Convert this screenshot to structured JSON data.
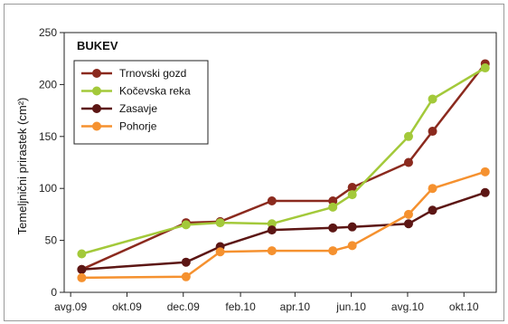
{
  "chart_data": {
    "type": "line",
    "title": "BUKEV",
    "xlabel": "",
    "ylabel": "Temeljnični prirastek (cm²)",
    "ylim": [
      0,
      250
    ],
    "yticks": [
      0,
      50,
      100,
      150,
      200,
      250
    ],
    "xlim": [
      "2009-07-25",
      "2010-11-05"
    ],
    "xticks": [
      {
        "label": "avg.09",
        "date": "2009-08-01"
      },
      {
        "label": "okt.09",
        "date": "2009-10-01"
      },
      {
        "label": "dec.09",
        "date": "2009-12-01"
      },
      {
        "label": "feb.10",
        "date": "2010-02-01"
      },
      {
        "label": "apr.10",
        "date": "2010-04-01"
      },
      {
        "label": "jun.10",
        "date": "2010-06-01"
      },
      {
        "label": "avg.10",
        "date": "2010-08-01"
      },
      {
        "label": "okt.10",
        "date": "2010-10-01"
      }
    ],
    "grid": false,
    "legend_position": "top-left",
    "series": [
      {
        "name": "Trnovski gozd",
        "color": "#8b2a1e",
        "points": [
          {
            "x": "2009-08-13",
            "y": 22
          },
          {
            "x": "2009-12-04",
            "y": 67
          },
          {
            "x": "2010-01-10",
            "y": 68
          },
          {
            "x": "2010-03-07",
            "y": 88
          },
          {
            "x": "2010-05-12",
            "y": 88
          },
          {
            "x": "2010-06-02",
            "y": 101
          },
          {
            "x": "2010-08-02",
            "y": 125
          },
          {
            "x": "2010-08-28",
            "y": 155
          },
          {
            "x": "2010-10-24",
            "y": 220
          }
        ]
      },
      {
        "name": "Kočevska reka",
        "color": "#a3c93a",
        "points": [
          {
            "x": "2009-08-13",
            "y": 37
          },
          {
            "x": "2009-12-04",
            "y": 65
          },
          {
            "x": "2010-01-10",
            "y": 67
          },
          {
            "x": "2010-03-07",
            "y": 66
          },
          {
            "x": "2010-05-12",
            "y": 82
          },
          {
            "x": "2010-06-02",
            "y": 94
          },
          {
            "x": "2010-08-02",
            "y": 150
          },
          {
            "x": "2010-08-28",
            "y": 186
          },
          {
            "x": "2010-10-24",
            "y": 216
          }
        ]
      },
      {
        "name": "Zasavje",
        "color": "#5c1614",
        "points": [
          {
            "x": "2009-08-13",
            "y": 22
          },
          {
            "x": "2009-12-04",
            "y": 29
          },
          {
            "x": "2010-01-10",
            "y": 44
          },
          {
            "x": "2010-03-07",
            "y": 60
          },
          {
            "x": "2010-05-12",
            "y": 62
          },
          {
            "x": "2010-06-02",
            "y": 63
          },
          {
            "x": "2010-08-02",
            "y": 66
          },
          {
            "x": "2010-08-28",
            "y": 79
          },
          {
            "x": "2010-10-24",
            "y": 96
          }
        ]
      },
      {
        "name": "Pohorje",
        "color": "#f5912f",
        "points": [
          {
            "x": "2009-08-13",
            "y": 14
          },
          {
            "x": "2009-12-04",
            "y": 15
          },
          {
            "x": "2010-01-10",
            "y": 39
          },
          {
            "x": "2010-03-07",
            "y": 40
          },
          {
            "x": "2010-05-12",
            "y": 40
          },
          {
            "x": "2010-06-02",
            "y": 45
          },
          {
            "x": "2010-08-02",
            "y": 75
          },
          {
            "x": "2010-08-28",
            "y": 100
          },
          {
            "x": "2010-10-24",
            "y": 116
          }
        ]
      }
    ]
  }
}
